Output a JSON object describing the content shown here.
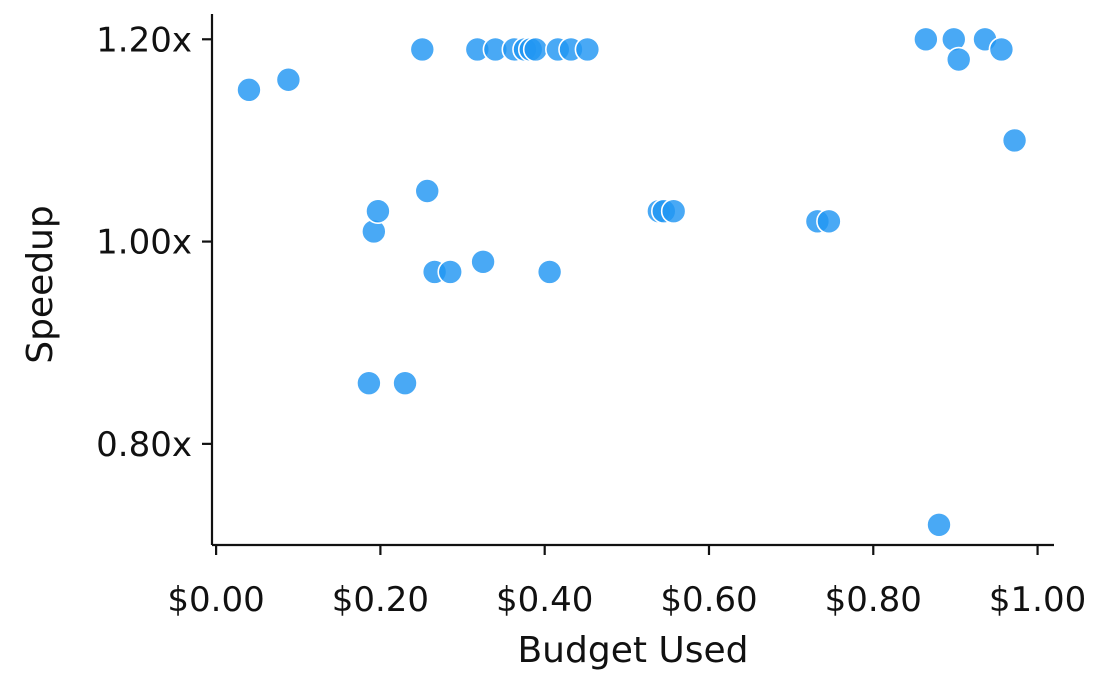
{
  "chart_data": {
    "type": "scatter",
    "title": "",
    "xlabel": "Budget Used",
    "ylabel": "Speedup",
    "xlim": [
      -0.005,
      1.02
    ],
    "ylim": [
      0.7,
      1.225
    ],
    "xticks": [
      0.0,
      0.2,
      0.4,
      0.6,
      0.8,
      1.0
    ],
    "xtick_labels": [
      "$0.00",
      "$0.20",
      "$0.40",
      "$0.60",
      "$0.80",
      "$1.00"
    ],
    "yticks": [
      0.8,
      1.0,
      1.2
    ],
    "ytick_labels": [
      "0.80x",
      "1.00x",
      "1.20x"
    ],
    "grid": false,
    "legend": false,
    "marker_color": "#2196F3",
    "marker_edge_color": "#ffffff",
    "points": [
      {
        "x": 0.04,
        "y": 1.15
      },
      {
        "x": 0.088,
        "y": 1.16
      },
      {
        "x": 0.186,
        "y": 0.86
      },
      {
        "x": 0.23,
        "y": 0.86
      },
      {
        "x": 0.192,
        "y": 1.01
      },
      {
        "x": 0.197,
        "y": 1.03
      },
      {
        "x": 0.251,
        "y": 1.19
      },
      {
        "x": 0.257,
        "y": 1.05
      },
      {
        "x": 0.266,
        "y": 0.97
      },
      {
        "x": 0.285,
        "y": 0.97
      },
      {
        "x": 0.318,
        "y": 1.19
      },
      {
        "x": 0.325,
        "y": 0.98
      },
      {
        "x": 0.34,
        "y": 1.19
      },
      {
        "x": 0.363,
        "y": 1.19
      },
      {
        "x": 0.376,
        "y": 1.19
      },
      {
        "x": 0.383,
        "y": 1.19
      },
      {
        "x": 0.389,
        "y": 1.19
      },
      {
        "x": 0.406,
        "y": 0.97
      },
      {
        "x": 0.416,
        "y": 1.19
      },
      {
        "x": 0.432,
        "y": 1.19
      },
      {
        "x": 0.452,
        "y": 1.19
      },
      {
        "x": 0.539,
        "y": 1.03
      },
      {
        "x": 0.545,
        "y": 1.03
      },
      {
        "x": 0.557,
        "y": 1.03
      },
      {
        "x": 0.732,
        "y": 1.02
      },
      {
        "x": 0.746,
        "y": 1.02
      },
      {
        "x": 0.864,
        "y": 1.2
      },
      {
        "x": 0.88,
        "y": 0.72
      },
      {
        "x": 0.898,
        "y": 1.2
      },
      {
        "x": 0.904,
        "y": 1.18
      },
      {
        "x": 0.936,
        "y": 1.2
      },
      {
        "x": 0.956,
        "y": 1.19
      },
      {
        "x": 0.972,
        "y": 1.1
      }
    ]
  }
}
